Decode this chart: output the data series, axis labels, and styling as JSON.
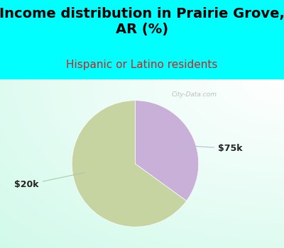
{
  "title": "Income distribution in Prairie Grove,\nAR (%)",
  "subtitle": "Hispanic or Latino residents",
  "title_fontsize": 14,
  "subtitle_fontsize": 11,
  "title_color": "#000000",
  "subtitle_color": "#cc2222",
  "background_color": "#00ffff",
  "slices": [
    {
      "label": "$20k",
      "value": 65,
      "color": "#c5d4a0"
    },
    {
      "label": "$75k",
      "value": 35,
      "color": "#c8b0d8"
    }
  ],
  "label_fontsize": 9,
  "label_color": "#222222",
  "startangle": 90,
  "watermark": "City-Data.com"
}
